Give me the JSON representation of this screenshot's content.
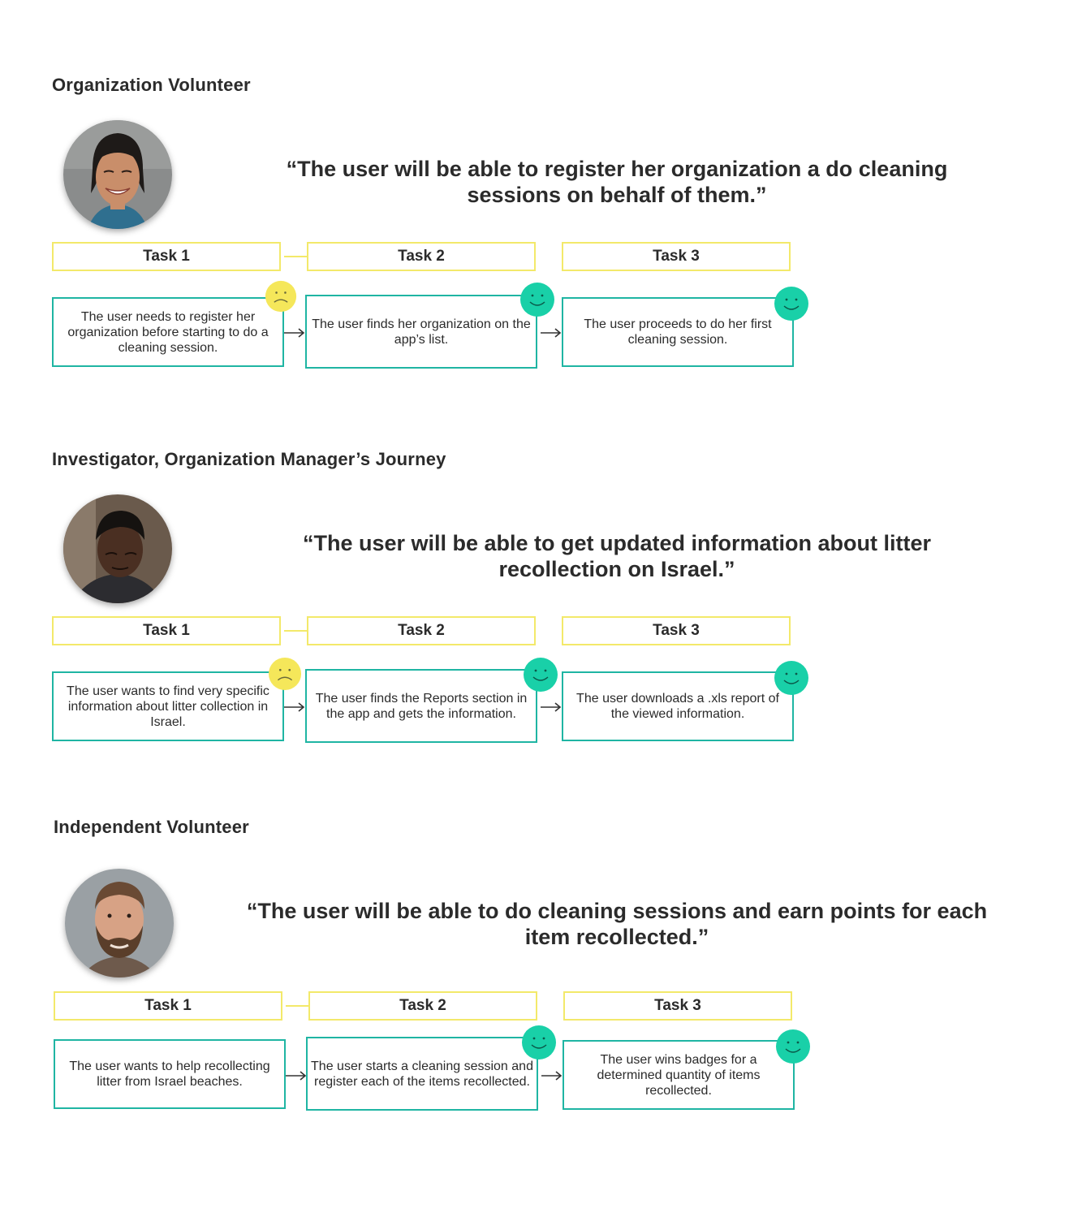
{
  "journeys": [
    {
      "title": "Organization Volunteer",
      "quote": "“The user will be able to register her organization a do cleaning sessions on behalf of them.”",
      "avatar_icon": "woman-portrait",
      "tasks": [
        {
          "label": "Task 1",
          "text": "The user needs to register her organization before starting to do a cleaning session.",
          "mood": "sad"
        },
        {
          "label": "Task 2",
          "text": "The user finds her organization on the app’s list.",
          "mood": "happy"
        },
        {
          "label": "Task 3",
          "text": "The user proceeds to do her first cleaning session.",
          "mood": "happy"
        }
      ]
    },
    {
      "title": "Investigator, Organization Manager’s Journey",
      "quote": "“The user will be able to get updated information about litter recollection on Israel.”",
      "avatar_icon": "man-portrait-dark",
      "tasks": [
        {
          "label": "Task 1",
          "text": "The user wants to find very specific information about litter collection in Israel.",
          "mood": "sad"
        },
        {
          "label": "Task 2",
          "text": "The user finds the Reports section in the app and gets the information.",
          "mood": "happy"
        },
        {
          "label": "Task 3",
          "text": "The user downloads a .xls report of the viewed information.",
          "mood": "happy"
        }
      ]
    },
    {
      "title": "Independent Volunteer",
      "quote": "“The user will be able to do cleaning sessions and earn points for each item recollected.”",
      "avatar_icon": "man-portrait-beard",
      "tasks": [
        {
          "label": "Task 1",
          "text": "The user wants to help recollecting litter from Israel beaches.",
          "mood": "none"
        },
        {
          "label": "Task 2",
          "text": "The user starts a cleaning session and register each of the items recollected.",
          "mood": "happy"
        },
        {
          "label": "Task 3",
          "text": "The user wins badges for a determined quantity of items recollected.",
          "mood": "happy"
        }
      ]
    }
  ],
  "colors": {
    "head_border": "#f3e96a",
    "box_border": "#1fb5a3",
    "happy": "#19d0a8",
    "sad": "#f5e75a"
  }
}
